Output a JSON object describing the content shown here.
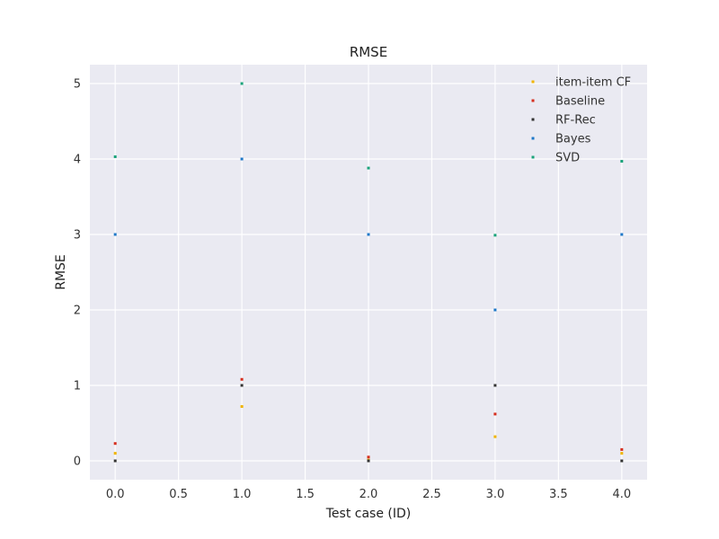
{
  "chart_data": {
    "type": "scatter",
    "title": "RMSE",
    "xlabel": "Test case (ID)",
    "ylabel": "RMSE",
    "xlim": [
      -0.2,
      4.2
    ],
    "ylim": [
      -0.25,
      5.25
    ],
    "xticks": [
      "0.0",
      "0.5",
      "1.0",
      "1.5",
      "2.0",
      "2.5",
      "3.0",
      "3.5",
      "4.0"
    ],
    "yticks": [
      "0",
      "1",
      "2",
      "3",
      "4",
      "5"
    ],
    "grid": true,
    "legend_position": "top-right",
    "x": [
      0,
      1,
      2,
      3,
      4
    ],
    "series": [
      {
        "name": "item-item CF",
        "color": "#f0b400",
        "values": [
          0.1,
          0.72,
          0.01,
          0.32,
          0.1
        ]
      },
      {
        "name": "Baseline",
        "color": "#d62f1f",
        "values": [
          0.23,
          1.08,
          0.05,
          0.62,
          0.15
        ]
      },
      {
        "name": "RF-Rec",
        "color": "#333333",
        "values": [
          0.0,
          1.0,
          0.0,
          1.0,
          0.0
        ]
      },
      {
        "name": "Bayes",
        "color": "#1f78c8",
        "values": [
          3.0,
          4.0,
          3.0,
          2.0,
          3.0
        ]
      },
      {
        "name": "SVD",
        "color": "#1aa37a",
        "values": [
          4.03,
          5.0,
          3.88,
          2.99,
          3.97
        ]
      }
    ]
  }
}
